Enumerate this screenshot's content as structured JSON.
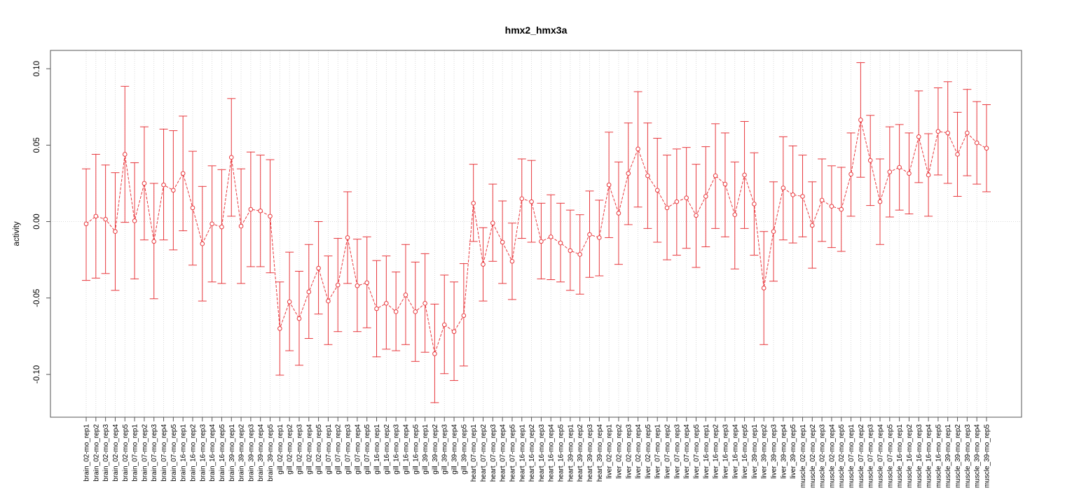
{
  "chart_data": {
    "type": "line",
    "title": "hmx2_hmx3a",
    "xlabel": "",
    "ylabel": "activity",
    "ylim": [
      -0.128,
      0.112
    ],
    "yticks": [
      -0.1,
      -0.05,
      0.0,
      0.05,
      0.1
    ],
    "ytick_labels": [
      "-0.10",
      "-0.05",
      "0.00",
      "0.05",
      "0.10"
    ],
    "grid": true,
    "line_style": "dashed",
    "error_bars": true,
    "colors": {
      "series": "#e8383d",
      "grid": "#cfcfcf",
      "frame": "#555555"
    },
    "categories": [
      "brain_02-mo_rep1",
      "brain_02-mo_rep2",
      "brain_02-mo_rep3",
      "brain_02-mo_rep4",
      "brain_02-mo_rep5",
      "brain_07-mo_rep1",
      "brain_07-mo_rep2",
      "brain_07-mo_rep3",
      "brain_07-mo_rep4",
      "brain_07-mo_rep5",
      "brain_16-mo_rep1",
      "brain_16-mo_rep2",
      "brain_16-mo_rep3",
      "brain_16-mo_rep4",
      "brain_16-mo_rep5",
      "brain_39-mo_rep1",
      "brain_39-mo_rep2",
      "brain_39-mo_rep3",
      "brain_39-mo_rep4",
      "brain_39-mo_rep5",
      "gill_02-mo_rep1",
      "gill_02-mo_rep2",
      "gill_02-mo_rep3",
      "gill_02-mo_rep4",
      "gill_02-mo_rep5",
      "gill_07-mo_rep1",
      "gill_07-mo_rep2",
      "gill_07-mo_rep3",
      "gill_07-mo_rep4",
      "gill_07-mo_rep5",
      "gill_16-mo_rep1",
      "gill_16-mo_rep2",
      "gill_16-mo_rep3",
      "gill_16-mo_rep4",
      "gill_16-mo_rep5",
      "gill_39-mo_rep1",
      "gill_39-mo_rep2",
      "gill_39-mo_rep3",
      "gill_39-mo_rep4",
      "gill_39-mo_rep5",
      "heart_07-mo_rep1",
      "heart_07-mo_rep2",
      "heart_07-mo_rep3",
      "heart_07-mo_rep4",
      "heart_07-mo_rep5",
      "heart_16-mo_rep1",
      "heart_16-mo_rep2",
      "heart_16-mo_rep3",
      "heart_16-mo_rep4",
      "heart_16-mo_rep5",
      "heart_39-mo_rep1",
      "heart_39-mo_rep2",
      "heart_39-mo_rep3",
      "heart_39-mo_rep4",
      "liver_02-mo_rep1",
      "liver_02-mo_rep2",
      "liver_02-mo_rep3",
      "liver_02-mo_rep4",
      "liver_02-mo_rep5",
      "liver_07-mo_rep1",
      "liver_07-mo_rep2",
      "liver_07-mo_rep3",
      "liver_07-mo_rep4",
      "liver_07-mo_rep5",
      "liver_16-mo_rep1",
      "liver_16-mo_rep2",
      "liver_16-mo_rep3",
      "liver_16-mo_rep4",
      "liver_16-mo_rep5",
      "liver_39-mo_rep1",
      "liver_39-mo_rep2",
      "liver_39-mo_rep3",
      "liver_39-mo_rep4",
      "liver_39-mo_rep5",
      "muscle_02-mo_rep1",
      "muscle_02-mo_rep2",
      "muscle_02-mo_rep3",
      "muscle_02-mo_rep4",
      "muscle_02-mo_rep5",
      "muscle_07-mo_rep1",
      "muscle_07-mo_rep2",
      "muscle_07-mo_rep3",
      "muscle_07-mo_rep4",
      "muscle_07-mo_rep5",
      "muscle_16-mo_rep1",
      "muscle_16-mo_rep2",
      "muscle_16-mo_rep3",
      "muscle_16-mo_rep4",
      "muscle_16-mo_rep5",
      "muscle_39-mo_rep1",
      "muscle_39-mo_rep2",
      "muscle_39-mo_rep3",
      "muscle_39-mo_rep4",
      "muscle_39-mo_rep5"
    ],
    "values": [
      -0.0015,
      0.0035,
      0.0015,
      -0.0065,
      0.044,
      0.0005,
      0.025,
      -0.013,
      0.024,
      0.0205,
      0.0315,
      0.009,
      -0.0145,
      -0.0015,
      -0.0035,
      0.042,
      -0.003,
      0.008,
      0.007,
      0.0035,
      -0.07,
      -0.0525,
      -0.0635,
      -0.046,
      -0.0305,
      -0.052,
      -0.0415,
      -0.0105,
      -0.042,
      -0.04,
      -0.057,
      -0.0535,
      -0.059,
      -0.048,
      -0.059,
      -0.0535,
      -0.0865,
      -0.0675,
      -0.072,
      -0.0615,
      0.012,
      -0.028,
      -0.001,
      -0.0135,
      -0.026,
      0.015,
      0.013,
      -0.013,
      -0.01,
      -0.014,
      -0.019,
      -0.0215,
      -0.0085,
      -0.0105,
      0.024,
      0.0055,
      0.0315,
      0.0475,
      0.03,
      0.0205,
      0.009,
      0.013,
      0.0155,
      0.004,
      0.0165,
      0.03,
      0.0245,
      0.0045,
      0.0305,
      0.0115,
      -0.0435,
      -0.0065,
      0.022,
      0.0175,
      0.0165,
      -0.0025,
      0.014,
      0.01,
      0.008,
      0.031,
      0.0665,
      0.04,
      0.013,
      0.0325,
      0.0355,
      0.0315,
      0.0555,
      0.0305,
      0.059,
      0.058,
      0.044,
      0.058,
      0.0515,
      0.048
    ],
    "lower": [
      -0.0385,
      -0.037,
      -0.034,
      -0.045,
      -0.0005,
      -0.0375,
      -0.012,
      -0.0505,
      -0.012,
      -0.0185,
      -0.006,
      -0.0285,
      -0.052,
      -0.0395,
      -0.0405,
      0.0035,
      -0.0405,
      -0.0295,
      -0.0295,
      -0.0335,
      -0.1005,
      -0.0845,
      -0.094,
      -0.0765,
      -0.0605,
      -0.0805,
      -0.072,
      -0.0405,
      -0.072,
      -0.0695,
      -0.0885,
      -0.0835,
      -0.0845,
      -0.0805,
      -0.0915,
      -0.0855,
      -0.1185,
      -0.0995,
      -0.104,
      -0.0945,
      -0.013,
      -0.052,
      -0.026,
      -0.0405,
      -0.051,
      -0.011,
      -0.0135,
      -0.0375,
      -0.038,
      -0.0395,
      -0.045,
      -0.0475,
      -0.0365,
      -0.0355,
      -0.0105,
      -0.028,
      -0.002,
      0.0095,
      -0.0045,
      -0.0135,
      -0.025,
      -0.022,
      -0.0175,
      -0.03,
      -0.0165,
      -0.0045,
      -0.01,
      -0.031,
      -0.0045,
      -0.022,
      -0.0805,
      -0.039,
      -0.012,
      -0.014,
      -0.01,
      -0.0305,
      -0.013,
      -0.017,
      -0.0195,
      0.0035,
      0.029,
      0.0105,
      -0.015,
      0.003,
      0.0075,
      0.005,
      0.0255,
      0.0035,
      0.0305,
      0.025,
      0.0165,
      0.03,
      0.0245,
      0.0195
    ],
    "upper": [
      0.0345,
      0.044,
      0.037,
      0.032,
      0.0885,
      0.0385,
      0.062,
      0.025,
      0.0605,
      0.0595,
      0.069,
      0.046,
      0.023,
      0.0365,
      0.034,
      0.0805,
      0.0345,
      0.0455,
      0.0435,
      0.0405,
      -0.0395,
      -0.02,
      -0.0325,
      -0.015,
      0.0,
      -0.0225,
      -0.011,
      0.0195,
      -0.0115,
      -0.01,
      -0.0255,
      -0.0225,
      -0.033,
      -0.015,
      -0.0265,
      -0.021,
      -0.054,
      -0.035,
      -0.0395,
      -0.0275,
      0.0375,
      -0.004,
      0.0245,
      0.0135,
      -0.001,
      0.041,
      0.04,
      0.012,
      0.0175,
      0.012,
      0.0075,
      0.0045,
      0.02,
      0.014,
      0.0585,
      0.039,
      0.0645,
      0.085,
      0.0645,
      0.0545,
      0.0435,
      0.0475,
      0.0485,
      0.0375,
      0.049,
      0.064,
      0.058,
      0.039,
      0.0655,
      0.045,
      -0.0065,
      0.026,
      0.0555,
      0.0495,
      0.0435,
      0.026,
      0.041,
      0.0365,
      0.0355,
      0.058,
      0.104,
      0.0695,
      0.041,
      0.062,
      0.0635,
      0.058,
      0.0855,
      0.0575,
      0.0875,
      0.0915,
      0.0715,
      0.0865,
      0.0785,
      0.0765
    ]
  }
}
